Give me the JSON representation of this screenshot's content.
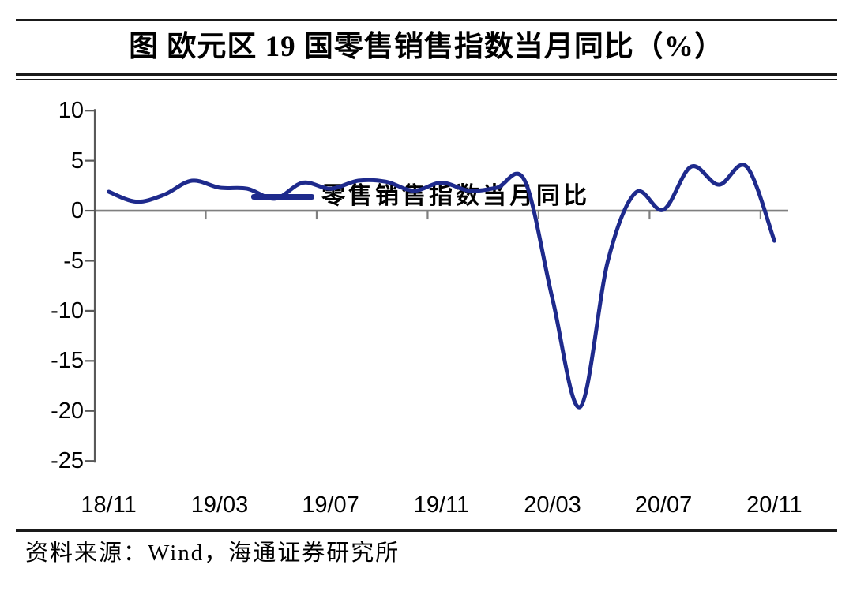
{
  "header": {
    "title": "图 欧元区 19 国零售销售指数当月同比（%）"
  },
  "legend": {
    "label": "零售销售指数当月同比"
  },
  "footer": {
    "source": "资料来源：Wind，海通证券研究所"
  },
  "colors": {
    "line": "#1e2a8c",
    "axis": "#595959",
    "zero_line": "#7f7f7f",
    "rule": "#1a1a1a",
    "text": "#000000",
    "background": "#ffffff"
  },
  "chart_data": {
    "type": "line",
    "title": "欧元区19国零售销售指数当月同比（%）",
    "xlabel": "",
    "ylabel": "",
    "ylim": [
      -25,
      10
    ],
    "grid": false,
    "legend_position": "top",
    "x": [
      "18/11",
      "18/12",
      "19/01",
      "19/02",
      "19/03",
      "19/04",
      "19/05",
      "19/06",
      "19/07",
      "19/08",
      "19/09",
      "19/10",
      "19/11",
      "19/12",
      "20/01",
      "20/02",
      "20/03",
      "20/04",
      "20/05",
      "20/06",
      "20/07",
      "20/08",
      "20/09",
      "20/10",
      "20/11"
    ],
    "series": [
      {
        "name": "零售销售指数当月同比",
        "color": "#1e2a8c",
        "values": [
          1.9,
          0.9,
          1.6,
          3.0,
          2.3,
          2.2,
          1.2,
          2.8,
          2.2,
          3.0,
          2.9,
          2.0,
          2.8,
          2.0,
          2.3,
          3.0,
          -8.8,
          -19.6,
          -5.0,
          1.8,
          0.1,
          4.4,
          2.6,
          4.4,
          -3.0
        ]
      }
    ],
    "y_ticks": [
      10,
      5,
      0,
      -5,
      -10,
      -15,
      -20,
      -25
    ],
    "x_tick_labels": [
      "18/11",
      "19/03",
      "19/07",
      "19/11",
      "20/03",
      "20/07",
      "20/11"
    ],
    "x_label_interval": 4
  }
}
